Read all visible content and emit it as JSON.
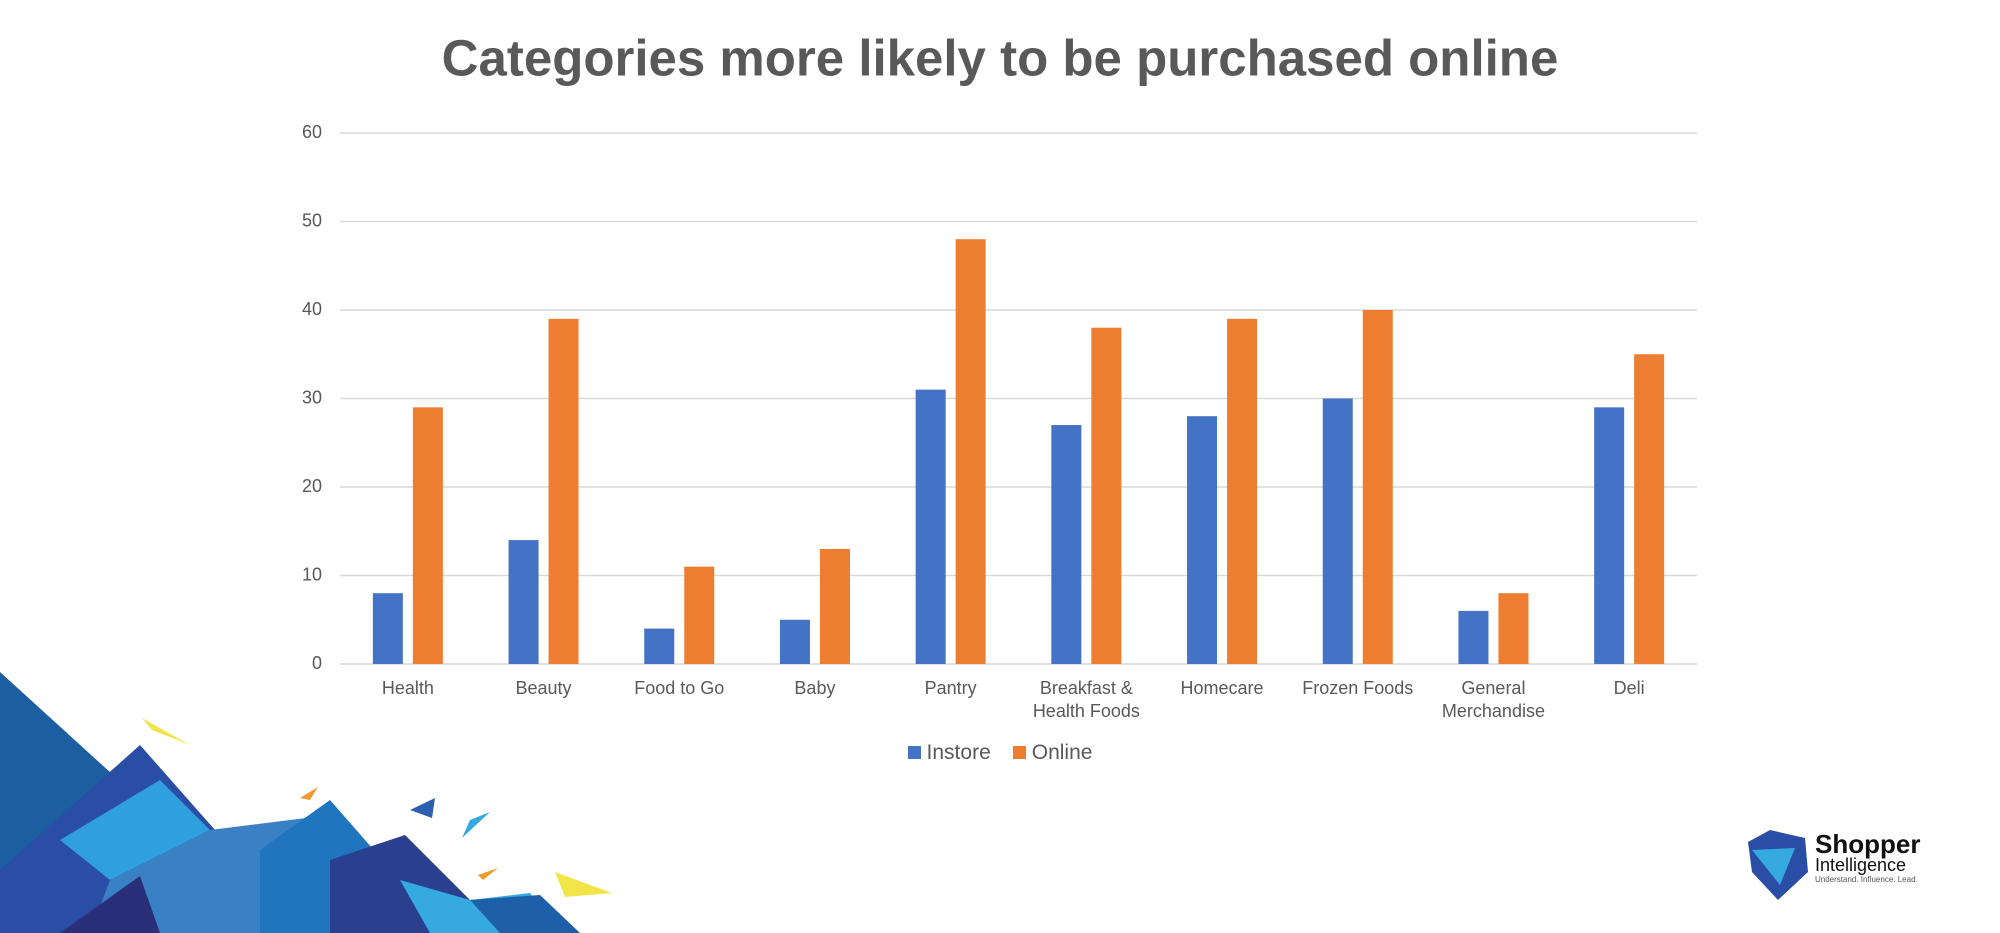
{
  "chart_data": {
    "type": "bar",
    "title": "Categories more likely to be purchased online",
    "categories": [
      "Health",
      "Beauty",
      "Food to Go",
      "Baby",
      "Pantry",
      "Breakfast & Health Foods",
      "Homecare",
      "Frozen Foods",
      "General Merchandise",
      "Deli"
    ],
    "series": [
      {
        "name": "Instore",
        "color": "#4472c4",
        "values": [
          8,
          14,
          4,
          5,
          31,
          27,
          28,
          30,
          6,
          29
        ]
      },
      {
        "name": "Online",
        "color": "#ed7d31",
        "values": [
          29,
          39,
          11,
          13,
          48,
          38,
          39,
          40,
          8,
          35
        ]
      }
    ],
    "ylim": [
      0,
      60
    ],
    "yticks": [
      0,
      10,
      20,
      30,
      40,
      50,
      60
    ],
    "grid": true,
    "legend": "bottom"
  },
  "logo": {
    "name": "Shopper",
    "name2": "Intelligence",
    "tagline": "Understand. Influence. Lead."
  }
}
